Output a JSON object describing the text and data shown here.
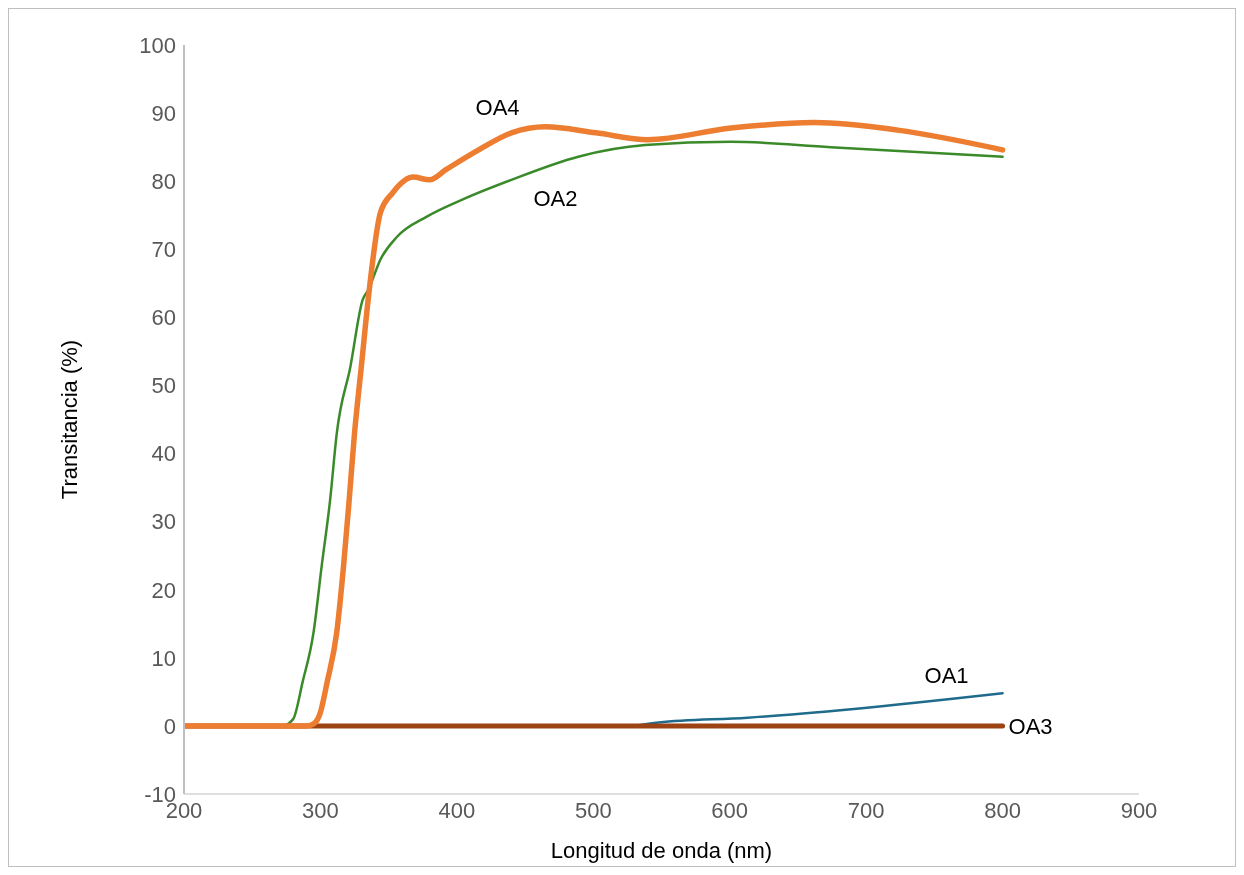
{
  "chart_data": {
    "type": "line",
    "xlabel": "Longitud de onda (nm)",
    "ylabel": "Transitancia (%)",
    "xlim": [
      200,
      900
    ],
    "xticks": [
      200,
      300,
      400,
      500,
      600,
      700,
      800,
      900
    ],
    "ylim": [
      -10,
      100
    ],
    "yticks": [
      -10,
      0,
      10,
      20,
      30,
      40,
      50,
      60,
      70,
      80,
      90,
      100
    ],
    "marker": "none",
    "series": [
      {
        "name": "OA1",
        "color": "#1f6b8c",
        "x": [
          530,
          548,
          613,
          691,
          800
        ],
        "values": [
          0,
          0.5,
          1.2,
          2.5,
          4.8
        ]
      },
      {
        "name": "OA2",
        "color": "#3a8a2a",
        "x": [
          200,
          272,
          280,
          287,
          295,
          301,
          307,
          312,
          322,
          331,
          335,
          344,
          356,
          378,
          404,
          440,
          489,
          538,
          601,
          674,
          800
        ],
        "values": [
          0,
          0,
          1,
          6.5,
          13.8,
          23.6,
          33,
          43,
          52.8,
          62.6,
          64,
          68.5,
          71.8,
          74.8,
          77.3,
          80.2,
          83.6,
          85.3,
          85.8,
          85,
          83.6
        ]
      },
      {
        "name": "OA3",
        "color": "#9c4213",
        "x": [
          200,
          800
        ],
        "values": [
          0,
          0
        ]
      },
      {
        "name": "OA4",
        "color": "#ed7d31",
        "x": [
          200,
          290,
          295,
          300,
          305,
          312,
          317,
          321,
          325,
          330,
          335,
          344,
          353,
          368,
          380,
          392,
          416,
          440,
          465,
          502,
          540,
          601,
          662,
          723,
          800
        ],
        "values": [
          0,
          0,
          0.3,
          2,
          6.5,
          13.8,
          23.6,
          33,
          43,
          52.8,
          62.6,
          75.4,
          78.3,
          80.6,
          80.2,
          81.7,
          84.6,
          87.1,
          88,
          87.1,
          86.1,
          87.8,
          88.6,
          87.5,
          84.6
        ]
      }
    ]
  }
}
